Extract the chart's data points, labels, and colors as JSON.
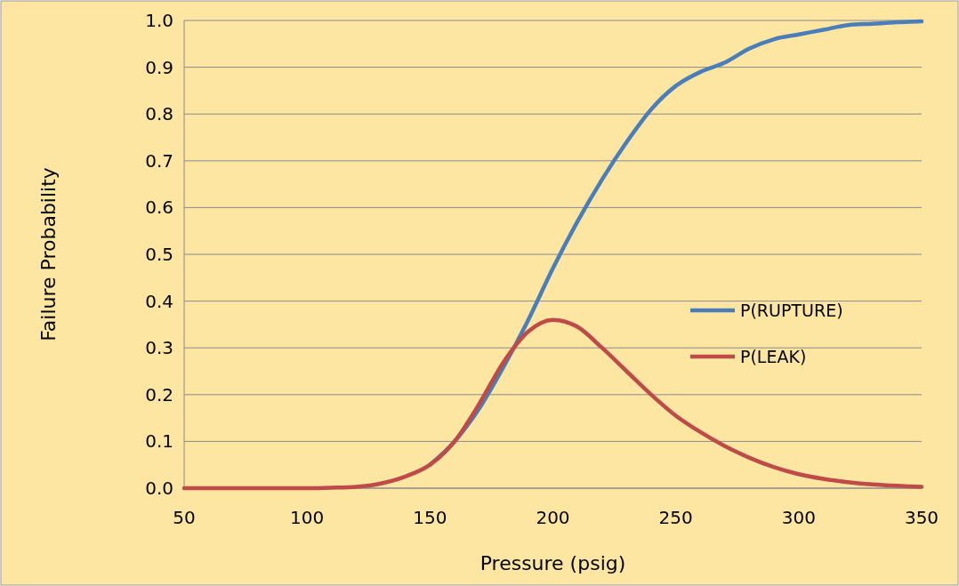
{
  "chart_data": {
    "type": "line",
    "xlabel": "Pressure (psig)",
    "ylabel": "Failure Probability",
    "x": [
      50,
      70,
      90,
      100,
      110,
      120,
      130,
      140,
      150,
      160,
      170,
      180,
      190,
      200,
      210,
      220,
      230,
      240,
      250,
      260,
      270,
      280,
      290,
      300,
      310,
      320,
      330,
      340,
      350
    ],
    "series": [
      {
        "name": "P(RUPTURE)",
        "color": "#4a7ebb",
        "values": [
          null,
          null,
          null,
          null,
          null,
          null,
          null,
          null,
          0.05,
          0.1,
          0.17,
          0.26,
          0.36,
          0.47,
          0.57,
          0.66,
          0.74,
          0.81,
          0.86,
          0.89,
          0.91,
          0.94,
          0.96,
          0.97,
          0.98,
          0.99,
          0.993,
          0.996,
          0.998
        ]
      },
      {
        "name": "P(LEAK)",
        "color": "#be4b48",
        "values": [
          0,
          0,
          0,
          0,
          0.001,
          0.003,
          0.01,
          0.025,
          0.05,
          0.1,
          0.18,
          0.27,
          0.335,
          0.36,
          0.345,
          0.3,
          0.25,
          0.2,
          0.155,
          0.12,
          0.09,
          0.065,
          0.045,
          0.03,
          0.02,
          0.013,
          0.008,
          0.005,
          0.003
        ]
      }
    ],
    "xlim": [
      50,
      350
    ],
    "xticks": [
      50,
      100,
      150,
      200,
      250,
      300,
      350
    ],
    "ylim": [
      0,
      1
    ],
    "yticks": [
      {
        "value": 0,
        "label": "0.0"
      },
      {
        "value": 0.1,
        "label": "0.1"
      },
      {
        "value": 0.2,
        "label": "0.2"
      },
      {
        "value": 0.3,
        "label": "0.3"
      },
      {
        "value": 0.4,
        "label": "0.4"
      },
      {
        "value": 0.5,
        "label": "0.5"
      },
      {
        "value": 0.6,
        "label": "0.6"
      },
      {
        "value": 0.7,
        "label": "0.7"
      },
      {
        "value": 0.8,
        "label": "0.8"
      },
      {
        "value": 0.9,
        "label": "0.9"
      },
      {
        "value": 1,
        "label": "1.0"
      }
    ],
    "grid": "y",
    "legend": "right",
    "marker": "none",
    "line_style": "solid"
  }
}
